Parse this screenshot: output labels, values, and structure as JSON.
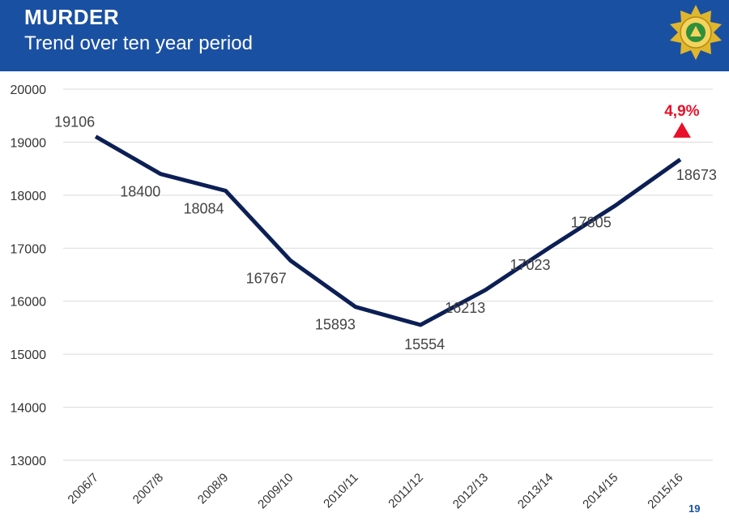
{
  "header": {
    "title": "MURDER",
    "subtitle": "Trend over ten year period",
    "logo_icon": "police-star-badge-icon"
  },
  "footer": {
    "page_number": "19"
  },
  "colors": {
    "header_bg": "#1a50a2",
    "line": "#0c1f55",
    "increase": "#e8102a",
    "grid": "#d9d9d9"
  },
  "chart_data": {
    "type": "line",
    "title": "",
    "xlabel": "",
    "ylabel": "",
    "categories": [
      "2006/7",
      "2007/8",
      "2008/9",
      "2009/10",
      "2010/11",
      "2011/12",
      "2012/13",
      "2013/14",
      "2014/15",
      "2015/16"
    ],
    "series": [
      {
        "values": [
          19106,
          18400,
          18084,
          16767,
          15893,
          15554,
          16213,
          17023,
          17805,
          18673
        ]
      }
    ],
    "data_labels": [
      "19106",
      "18400",
      "18084",
      "16767",
      "15893",
      "15554",
      "16213",
      "17023",
      "17805",
      "18673"
    ],
    "yticks": [
      13000,
      14000,
      15000,
      16000,
      17000,
      18000,
      19000,
      20000
    ],
    "ylim": [
      13000,
      20000
    ],
    "grid": true,
    "annotation": {
      "text": "4,9%",
      "category": "2015/16",
      "marker": "up-triangle"
    }
  }
}
